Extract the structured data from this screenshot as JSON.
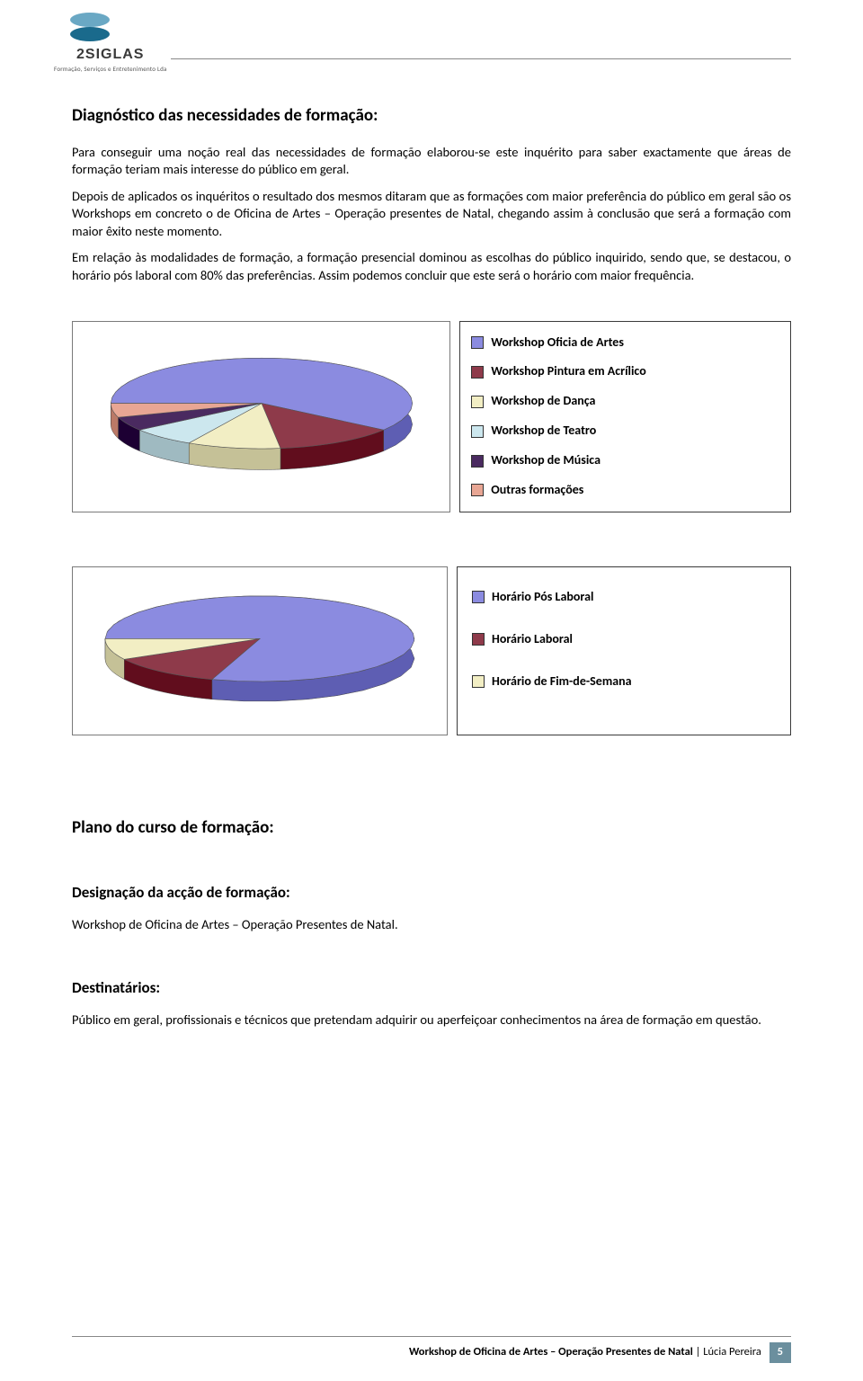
{
  "logo": {
    "brand": "2SIGLAS",
    "tagline": "Formação, Serviços e Entretenimento Lda",
    "top_color": "#6aa8c4",
    "bottom_color": "#1a6a8c"
  },
  "section1": {
    "title": "Diagnóstico das necessidades de formação:",
    "p1": "Para conseguir uma noção real das necessidades de formação elaborou-se este inquérito para saber exactamente que áreas de formação teriam mais interesse do público em geral.",
    "p2": "Depois de aplicados os inquéritos o resultado dos mesmos ditaram que as formações com maior preferência do público em geral são os Workshops em concreto o de Oficina de Artes – Operação presentes de Natal, chegando assim à conclusão que será a formação com maior êxito neste momento.",
    "p3": "Em relação às modalidades de formação, a formação presencial dominou as escolhas do público inquirido, sendo que, se destacou, o horário pós laboral com 80% das preferências. Assim podemos concluir que este será o horário com maior frequência."
  },
  "chart1": {
    "type": "pie3d",
    "slices": [
      {
        "label": "Workshop Oficia de Artes",
        "value": 60,
        "color": "#8b8be0"
      },
      {
        "label": "Workshop Pintura em Acrílico",
        "value": 13,
        "color": "#8e3a4a"
      },
      {
        "label": "Workshop de Dança",
        "value": 10,
        "color": "#f2eec4"
      },
      {
        "label": "Workshop de Teatro",
        "value": 7,
        "color": "#cce7ee"
      },
      {
        "label": "Workshop de Música",
        "value": 5,
        "color": "#4a2a60"
      },
      {
        "label": "Outras formações",
        "value": 5,
        "color": "#e8a694"
      }
    ],
    "border": "#7a7a7a",
    "background": "#ffffff"
  },
  "chart2": {
    "type": "pie3d",
    "slices": [
      {
        "label": "Horário Pós Laboral",
        "value": 80,
        "color": "#8b8be0"
      },
      {
        "label": "Horário Laboral",
        "value": 12,
        "color": "#8e3a4a"
      },
      {
        "label": "Horário de Fim-de-Semana",
        "value": 8,
        "color": "#f2eec4"
      }
    ],
    "border": "#7a7a7a",
    "background": "#ffffff"
  },
  "section2": {
    "title": "Plano do curso de formação:",
    "sub1_title": "Designação da acção de formação:",
    "sub1_text": "Workshop de Oficina de Artes – Operação Presentes de Natal.",
    "sub2_title": "Destinatários:",
    "sub2_text": "Público em geral, profissionais e técnicos que pretendam adquirir ou aperfeiçoar conhecimentos na área de formação em questão."
  },
  "footer": {
    "text_bold": "Workshop de Oficina de Artes – Operação Presentes de Natal",
    "text_plain": " | Lúcia Pereira",
    "page": "5",
    "page_bg": "#6b8f9e"
  }
}
